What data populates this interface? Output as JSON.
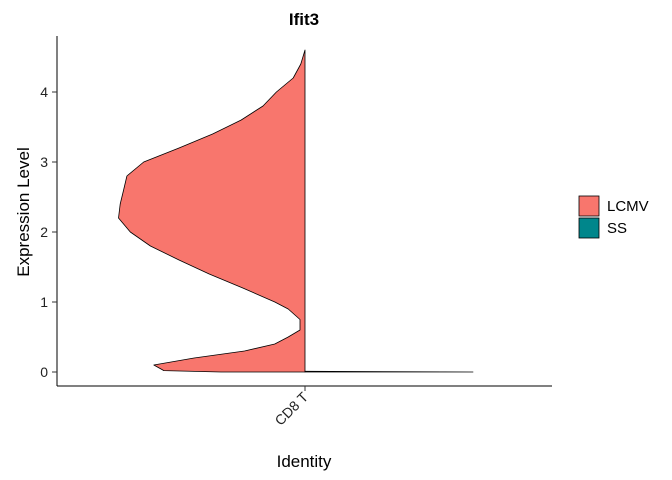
{
  "chart_data": {
    "type": "violin",
    "title": "Ifit3",
    "xlabel": "Identity",
    "ylabel": "Expression Level",
    "categories": [
      "CD8 T"
    ],
    "yticks": [
      0,
      1,
      2,
      3,
      4
    ],
    "ylim": [
      -0.2,
      4.8
    ],
    "split": true,
    "legend_position": "right",
    "series": [
      {
        "name": "LCMV",
        "color": "#F8766D",
        "side": "left",
        "y_max": 4.6,
        "profile": [
          [
            0.0,
            0.5
          ],
          [
            0.02,
            0.84
          ],
          [
            0.1,
            0.9
          ],
          [
            0.2,
            0.66
          ],
          [
            0.3,
            0.36
          ],
          [
            0.4,
            0.18
          ],
          [
            0.5,
            0.1
          ],
          [
            0.6,
            0.03
          ],
          [
            0.75,
            0.03
          ],
          [
            0.9,
            0.1
          ],
          [
            1.0,
            0.18
          ],
          [
            1.2,
            0.37
          ],
          [
            1.4,
            0.57
          ],
          [
            1.6,
            0.75
          ],
          [
            1.8,
            0.92
          ],
          [
            2.0,
            1.04
          ],
          [
            2.2,
            1.11
          ],
          [
            2.4,
            1.1
          ],
          [
            2.6,
            1.08
          ],
          [
            2.8,
            1.06
          ],
          [
            3.0,
            0.96
          ],
          [
            3.2,
            0.75
          ],
          [
            3.4,
            0.55
          ],
          [
            3.6,
            0.38
          ],
          [
            3.8,
            0.25
          ],
          [
            4.0,
            0.17
          ],
          [
            4.2,
            0.07
          ],
          [
            4.4,
            0.025
          ],
          [
            4.6,
            0.0
          ]
        ]
      },
      {
        "name": "SS",
        "color": "#00868B",
        "side": "right",
        "y_max": 0.01,
        "profile": [
          [
            0.0,
            1.0
          ],
          [
            0.01,
            0.0
          ]
        ]
      }
    ]
  }
}
